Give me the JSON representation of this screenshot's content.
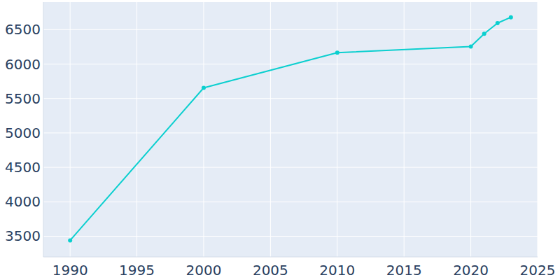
{
  "chart_data": {
    "type": "line",
    "x": [
      1990,
      2000,
      2010,
      2020,
      2021,
      2022,
      2023
    ],
    "values": [
      3440,
      5655,
      6165,
      6255,
      6440,
      6595,
      6680
    ],
    "color": "#0bcfcf",
    "marker": "circle",
    "xlim": [
      1988,
      2025
    ],
    "xticks": [
      1990,
      1995,
      2000,
      2005,
      2010,
      2015,
      2020,
      2025
    ],
    "ylim": [
      3200,
      6900
    ],
    "yticks": [
      3500,
      4000,
      4500,
      5000,
      5500,
      6000,
      6500
    ],
    "grid": true
  }
}
